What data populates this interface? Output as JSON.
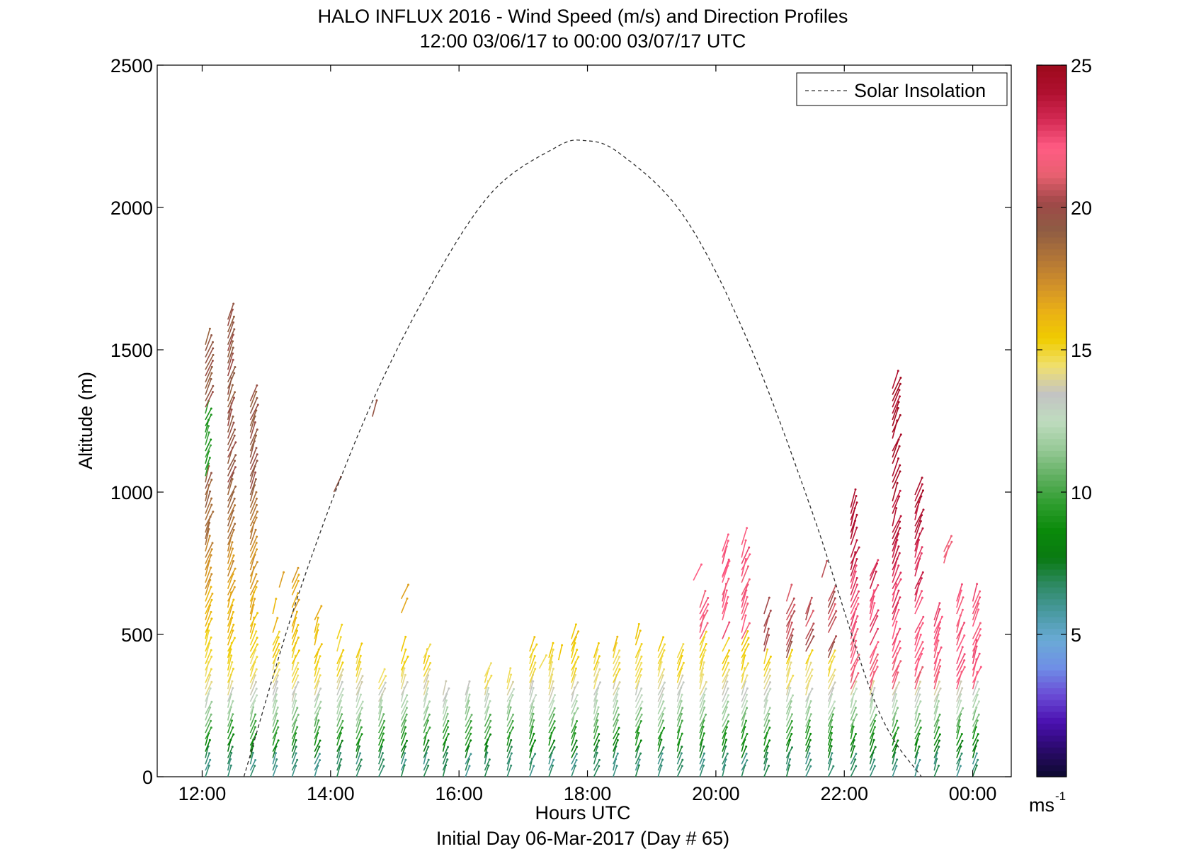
{
  "chart_data": {
    "type": "wind-profile",
    "title": "HALO INFLUX 2016 - Wind Speed (m/s) and Direction Profiles",
    "subtitle": "12:00 03/06/17 to 00:00 03/07/17  UTC",
    "xlabel": "Hours UTC",
    "xlabel2": "Initial Day 06-Mar-2017 (Day # 65)",
    "ylabel": "Altitude (m)",
    "xlim_hours": [
      11.3,
      24.6
    ],
    "ylim": [
      0,
      2500
    ],
    "x_ticks": [
      {
        "hour": 12,
        "label": "12:00"
      },
      {
        "hour": 14,
        "label": "14:00"
      },
      {
        "hour": 16,
        "label": "16:00"
      },
      {
        "hour": 18,
        "label": "18:00"
      },
      {
        "hour": 20,
        "label": "20:00"
      },
      {
        "hour": 22,
        "label": "22:00"
      },
      {
        "hour": 24,
        "label": "00:00"
      }
    ],
    "y_ticks": [
      {
        "value": 0,
        "label": "0"
      },
      {
        "value": 500,
        "label": "500"
      },
      {
        "value": 1000,
        "label": "1000"
      },
      {
        "value": 1500,
        "label": "1500"
      },
      {
        "value": 2000,
        "label": "2000"
      },
      {
        "value": 2500,
        "label": "2500"
      }
    ],
    "colorbar": {
      "range": [
        0,
        25
      ],
      "unit_label": "ms",
      "unit_exponent": "-1",
      "ticks": [
        {
          "value": 5,
          "label": "5"
        },
        {
          "value": 10,
          "label": "10"
        },
        {
          "value": 15,
          "label": "15"
        },
        {
          "value": 20,
          "label": "20"
        },
        {
          "value": 25,
          "label": "25"
        }
      ],
      "colors": [
        "#0d0a2e",
        "#2a0a6b",
        "#4a10b0",
        "#6a4cd6",
        "#6f8fe6",
        "#6aaad6",
        "#4a9aa2",
        "#2e8a64",
        "#0a7a12",
        "#0a8a0a",
        "#2f9e2f",
        "#62b062",
        "#98ca98",
        "#bfdcbf",
        "#c3c3c3",
        "#f0e070",
        "#f0cc00",
        "#eab016",
        "#d0902a",
        "#b07438",
        "#8e5c44",
        "#a04848",
        "#e86070",
        "#ff5c84",
        "#d42a54",
        "#b01030",
        "#9c0a1c"
      ]
    },
    "legend": {
      "label": "Solar Insolation",
      "position": "top-right",
      "style": "dashed"
    },
    "solar_insolation": {
      "x_hours": [
        12.65,
        13.5,
        14.5,
        15.5,
        16.5,
        17.5,
        17.95,
        18.5,
        19.5,
        20.5,
        21.5,
        22.5,
        23.2
      ],
      "altitude_equivalent": [
        0,
        640,
        1240,
        1700,
        2050,
        2210,
        2235,
        2190,
        1970,
        1530,
        930,
        250,
        0
      ]
    },
    "wind_columns": [
      {
        "hour": 12.05,
        "top": 1530
      },
      {
        "hour": 12.4,
        "top": 1620
      },
      {
        "hour": 12.75,
        "top": 1330
      },
      {
        "hour": 13.1,
        "top": 620
      },
      {
        "hour": 13.4,
        "top": 700
      },
      {
        "hour": 13.75,
        "top": 580
      },
      {
        "hour": 14.1,
        "top": 490
      },
      {
        "hour": 14.4,
        "top": 420
      },
      {
        "hour": 14.75,
        "top": 340
      },
      {
        "hour": 15.1,
        "top": 450
      },
      {
        "hour": 15.45,
        "top": 420
      },
      {
        "hour": 15.75,
        "top": 290
      },
      {
        "hour": 16.1,
        "top": 290
      },
      {
        "hour": 16.4,
        "top": 370
      },
      {
        "hour": 16.75,
        "top": 340
      },
      {
        "hour": 17.1,
        "top": 450
      },
      {
        "hour": 17.4,
        "top": 420
      },
      {
        "hour": 17.75,
        "top": 490
      },
      {
        "hour": 18.1,
        "top": 450
      },
      {
        "hour": 18.4,
        "top": 450
      },
      {
        "hour": 18.75,
        "top": 490
      },
      {
        "hour": 19.1,
        "top": 450
      },
      {
        "hour": 19.4,
        "top": 420
      },
      {
        "hour": 19.75,
        "top": 610
      },
      {
        "hour": 20.1,
        "top": 800
      },
      {
        "hour": 20.4,
        "top": 830
      },
      {
        "hour": 20.75,
        "top": 580
      },
      {
        "hour": 21.1,
        "top": 620
      },
      {
        "hour": 21.4,
        "top": 580
      },
      {
        "hour": 21.75,
        "top": 620
      },
      {
        "hour": 22.1,
        "top": 960
      },
      {
        "hour": 22.4,
        "top": 720
      },
      {
        "hour": 22.75,
        "top": 1380
      },
      {
        "hour": 23.1,
        "top": 1000
      },
      {
        "hour": 23.4,
        "top": 580
      },
      {
        "hour": 23.75,
        "top": 620
      },
      {
        "hour": 24.0,
        "top": 620
      }
    ],
    "isolated_barbs": [
      {
        "hour": 14.05,
        "alt": 1000
      },
      {
        "hour": 14.65,
        "alt": 1265
      },
      {
        "hour": 13.2,
        "alt": 665
      },
      {
        "hour": 15.1,
        "alt": 625
      },
      {
        "hour": 15.1,
        "alt": 575
      },
      {
        "hour": 19.65,
        "alt": 690
      },
      {
        "hour": 20.1,
        "alt": 700
      },
      {
        "hour": 21.65,
        "alt": 700
      },
      {
        "hour": 22.4,
        "alt": 690
      },
      {
        "hour": 23.55,
        "alt": 790
      },
      {
        "hour": 23.55,
        "alt": 770
      },
      {
        "hour": 23.55,
        "alt": 750
      },
      {
        "hour": 17.25,
        "alt": 380
      },
      {
        "hour": 17.55,
        "alt": 410
      }
    ]
  }
}
